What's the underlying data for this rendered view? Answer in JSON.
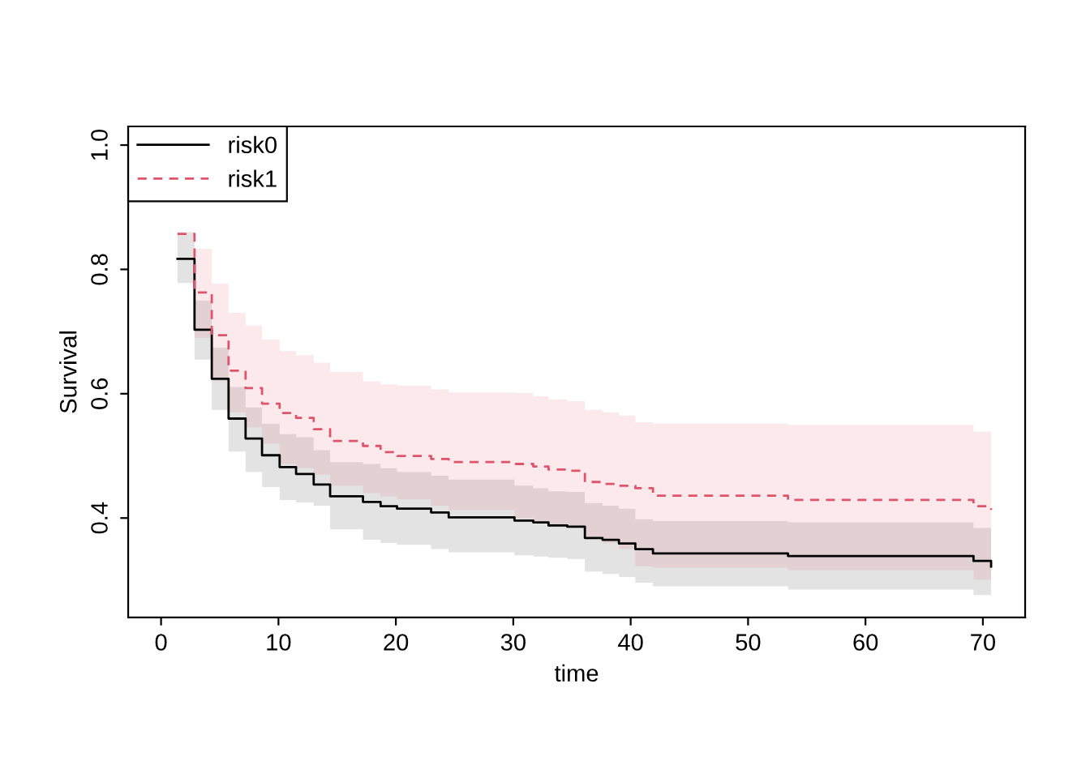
{
  "chart_data": {
    "type": "step",
    "xlabel": "time",
    "ylabel": "Survival",
    "xlim": [
      -2.8,
      73.6
    ],
    "ylim": [
      0.24,
      1.03
    ],
    "xticks": [
      0,
      10,
      20,
      30,
      40,
      50,
      60,
      70
    ],
    "yticks": [
      0.4,
      0.6,
      0.8,
      {
        "value": 1.0,
        "label": "1.0"
      }
    ],
    "legend": "top left",
    "grid": false,
    "x": [
      1.4,
      2.85,
      4.32,
      5.75,
      7.2,
      8.6,
      10.1,
      11.5,
      13.0,
      14.4,
      17.2,
      18.7,
      20.1,
      23.0,
      24.5,
      30.1,
      31.7,
      33.0,
      34.6,
      36.1,
      37.6,
      39.0,
      40.4,
      41.9,
      53.4,
      69.2,
      70.7
    ],
    "series": [
      {
        "name": "risk0",
        "color": "#000000",
        "line_style": "solid",
        "values": [
          0.817,
          0.703,
          0.624,
          0.56,
          0.528,
          0.501,
          0.482,
          0.471,
          0.454,
          0.435,
          0.426,
          0.419,
          0.415,
          0.409,
          0.401,
          0.396,
          0.393,
          0.388,
          0.386,
          0.368,
          0.365,
          0.359,
          0.35,
          0.343,
          0.339,
          0.331,
          0.322
        ],
        "lower": [
          0.778,
          0.655,
          0.574,
          0.507,
          0.474,
          0.45,
          0.429,
          0.425,
          0.42,
          0.382,
          0.365,
          0.36,
          0.357,
          0.35,
          0.345,
          0.34,
          0.338,
          0.336,
          0.334,
          0.314,
          0.31,
          0.305,
          0.296,
          0.29,
          0.285,
          0.276,
          0.276
        ],
        "upper": [
          0.86,
          0.75,
          0.674,
          0.611,
          0.578,
          0.552,
          0.535,
          0.53,
          0.509,
          0.49,
          0.487,
          0.48,
          0.474,
          0.468,
          0.462,
          0.452,
          0.448,
          0.443,
          0.442,
          0.424,
          0.42,
          0.415,
          0.398,
          0.395,
          0.393,
          0.384,
          0.384
        ]
      },
      {
        "name": "risk1",
        "color": "#df536b",
        "line_style": "dashed",
        "values": [
          0.857,
          0.763,
          0.694,
          0.637,
          0.609,
          0.584,
          0.569,
          0.561,
          0.543,
          0.524,
          0.516,
          0.506,
          0.5,
          0.495,
          0.49,
          0.487,
          0.483,
          0.478,
          0.476,
          0.458,
          0.455,
          0.452,
          0.448,
          0.436,
          0.429,
          0.419,
          0.413
        ],
        "lower": [
          null,
          0.69,
          0.62,
          0.57,
          0.546,
          0.52,
          0.487,
          0.48,
          0.47,
          0.452,
          0.44,
          0.435,
          0.43,
          0.42,
          0.413,
          0.4,
          0.395,
          0.387,
          0.385,
          0.366,
          0.36,
          0.35,
          0.322,
          0.32,
          0.316,
          0.301,
          0.301
        ],
        "upper": [
          null,
          0.833,
          0.777,
          0.73,
          0.71,
          0.687,
          0.669,
          0.662,
          0.65,
          0.635,
          0.62,
          0.615,
          0.613,
          0.607,
          0.602,
          0.601,
          0.596,
          0.591,
          0.588,
          0.574,
          0.57,
          0.565,
          0.554,
          0.552,
          0.55,
          0.539,
          0.539
        ]
      }
    ]
  }
}
